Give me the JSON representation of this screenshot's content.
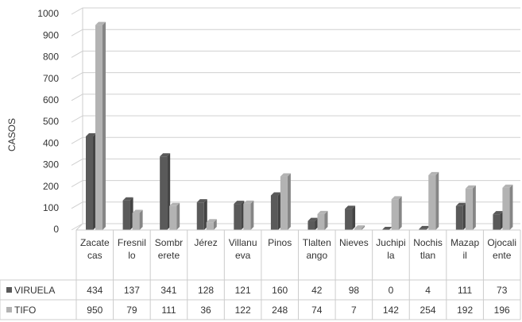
{
  "chart_data": {
    "type": "bar3d",
    "y_label": "CASOS",
    "categories": [
      "Zacatecas",
      "Fresnillo",
      "Sombrerete",
      "Jérez",
      "Villanueva",
      "Pinos",
      "Tlaltenango",
      "Nieves",
      "Juchipila",
      "Nochistlan",
      "Mazapil",
      "Ojocaliente"
    ],
    "series": [
      {
        "name": "VIRUELA",
        "color": "#5a5a5a",
        "values": [
          434,
          137,
          341,
          128,
          121,
          160,
          42,
          98,
          0,
          4,
          111,
          73
        ]
      },
      {
        "name": "TIFO",
        "color": "#b3b3b3",
        "values": [
          950,
          79,
          111,
          36,
          122,
          248,
          74,
          7,
          142,
          254,
          192,
          196
        ]
      }
    ],
    "ylim": [
      0,
      1000
    ],
    "yticks": [
      0,
      100,
      200,
      300,
      400,
      500,
      600,
      700,
      800,
      900,
      1000
    ],
    "grid": true
  }
}
